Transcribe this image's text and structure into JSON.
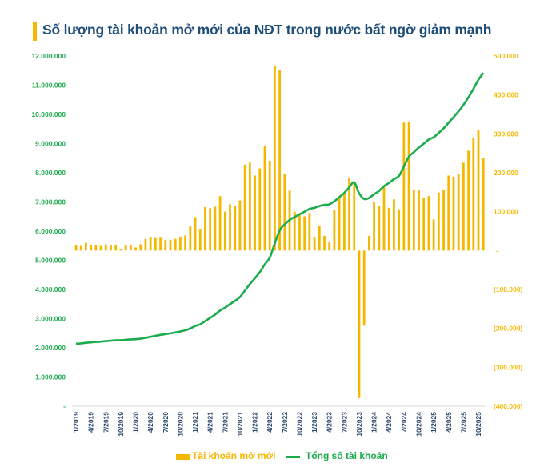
{
  "title": "Số lượng tài khoản mở mới của NĐT trong nước bất ngờ giảm mạnh",
  "colors": {
    "bars": "#f5b800",
    "line": "#1aab4b",
    "title": "#1f4e79",
    "x_labels": "#2e4a6e",
    "accent": "#f5b800"
  },
  "chart_data": {
    "type": "bar+line",
    "title": "Số lượng tài khoản mở mới của NĐT trong nước bất ngờ giảm mạnh",
    "grid": false,
    "legend_position": "bottom",
    "left_axis": {
      "range": [
        0,
        12000000
      ],
      "ticks": [
        "-",
        "1.000.000",
        "2.000.000",
        "3.000.000",
        "4.000.000",
        "5.000.000",
        "6.000.000",
        "7.000.000",
        "8.000.000",
        "9.000.000",
        "10.000.000",
        "11.000.000",
        "12.000.000"
      ]
    },
    "right_axis": {
      "range": [
        -400000,
        500000
      ],
      "ticks": [
        "(400.000)",
        "(300.000)",
        "(200.000)",
        "(100.000)",
        "-",
        "100.000",
        "200.000",
        "300.000",
        "400.000",
        "500.000"
      ]
    },
    "x_tick_labels": [
      "1/2019",
      "4/2019",
      "7/2019",
      "10/2019",
      "1/2020",
      "4/2020",
      "7/2020",
      "10/2020",
      "1/2021",
      "4/2021",
      "7/2021",
      "10/2021",
      "1/2022",
      "4/2022",
      "7/2022",
      "10/2022",
      "1/2023",
      "4/2023",
      "7/2023",
      "10/2023",
      "1/2024",
      "4/2024",
      "7/2024",
      "10/2024",
      "1/2025",
      "4/2025",
      "7/2025",
      "10/2025"
    ],
    "x_start": "1/2019",
    "x_end": "11/2025",
    "series": [
      {
        "name": "Tài khoản mở mới",
        "type": "bar",
        "axis": "right",
        "values": [
          14000,
          12000,
          20000,
          15000,
          15000,
          12000,
          16000,
          15000,
          14000,
          3000,
          14000,
          13000,
          8000,
          16000,
          30000,
          35000,
          32000,
          33000,
          27000,
          27000,
          30000,
          35000,
          39000,
          62000,
          86000,
          56000,
          112000,
          109000,
          113000,
          140000,
          100000,
          119000,
          114000,
          129000,
          221000,
          226000,
          193000,
          211000,
          269000,
          231000,
          476000,
          464000,
          198000,
          154000,
          100000,
          94000,
          88000,
          97000,
          35000,
          63000,
          38000,
          21000,
          104000,
          139000,
          149000,
          188000,
          173000,
          -379000,
          -193000,
          38000,
          125000,
          114000,
          163000,
          110000,
          132000,
          106000,
          329000,
          331000,
          157000,
          156000,
          135000,
          140000,
          80000,
          149000,
          156000,
          193000,
          190000,
          198000,
          226000,
          257000,
          289000,
          310000,
          237000
        ]
      },
      {
        "name": "Tổng số tài khoản",
        "type": "line",
        "axis": "left",
        "values": [
          2140000,
          2152000,
          2172000,
          2187000,
          2202000,
          2214000,
          2230000,
          2245000,
          2259000,
          2262000,
          2276000,
          2289000,
          2297000,
          2313000,
          2343000,
          2378000,
          2410000,
          2443000,
          2470000,
          2497000,
          2527000,
          2562000,
          2601000,
          2663000,
          2749000,
          2805000,
          2917000,
          3026000,
          3139000,
          3279000,
          3379000,
          3498000,
          3612000,
          3741000,
          3962000,
          4188000,
          4381000,
          4592000,
          4861000,
          5092000,
          5568000,
          6032000,
          6230000,
          6384000,
          6484000,
          6578000,
          6666000,
          6763000,
          6798000,
          6861000,
          6899000,
          6920000,
          7024000,
          7163000,
          7312000,
          7500000,
          7673000,
          7294000,
          7101000,
          7139000,
          7264000,
          7378000,
          7541000,
          7651000,
          7783000,
          7889000,
          8218000,
          8549000,
          8706000,
          8862000,
          8997000,
          9137000,
          9217000,
          9366000,
          9522000,
          9715000,
          9905000,
          10103000,
          10329000,
          10586000,
          10875000,
          11185000,
          11422000
        ]
      }
    ]
  },
  "legend": {
    "bars_label": "Tài khoản mở mới",
    "line_label": "Tổng số tài khoản"
  }
}
